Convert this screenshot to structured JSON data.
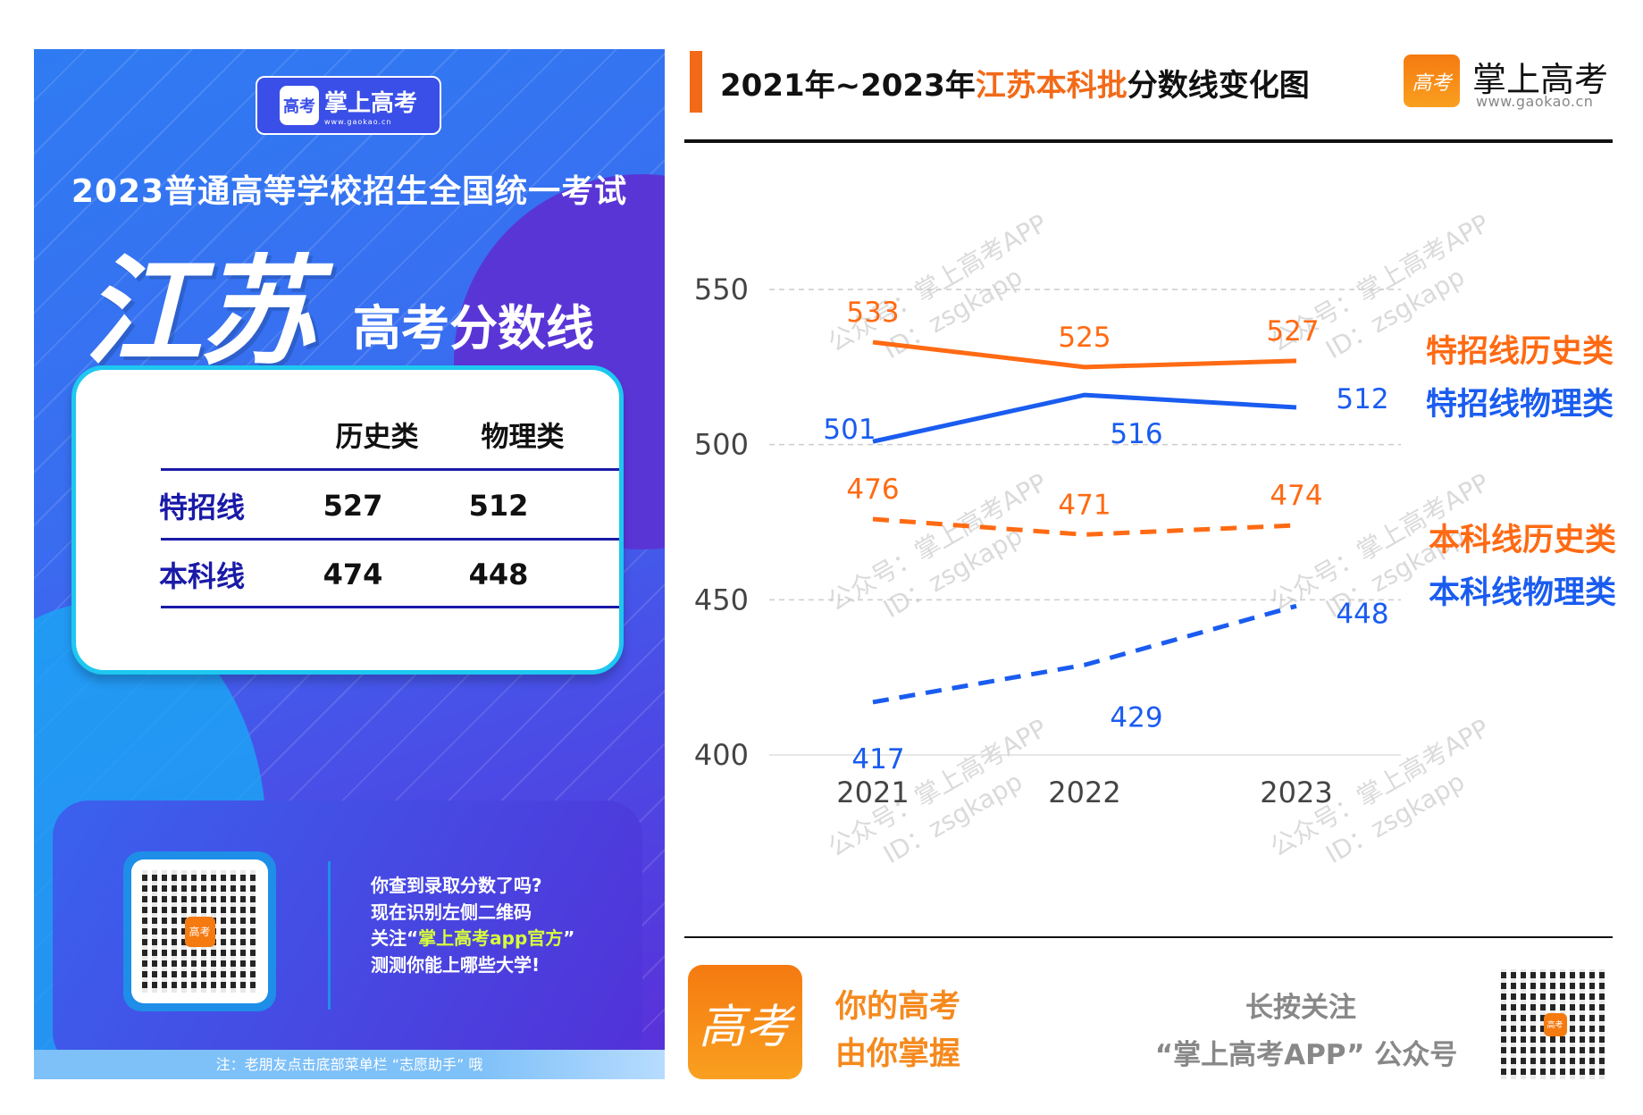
{
  "left_poster": {
    "logo": {
      "name": "掌上高考",
      "url": "www.gaokao.cn",
      "icon": "gaokao-logo-icon"
    },
    "exam_title": "2023普通高等学校招生全国统一考试",
    "province": "江苏",
    "subtitle": "高考分数线",
    "table": {
      "headers": [
        "",
        "历史类",
        "物理类"
      ],
      "rows": [
        {
          "label": "特招线",
          "history": "527",
          "physics": "512"
        },
        {
          "label": "本科线",
          "history": "474",
          "physics": "448"
        }
      ]
    },
    "promo": {
      "lines": [
        "你查到录取分数了吗?",
        "现在识别左侧二维码"
      ],
      "line3_prefix": "关注“",
      "line3_highlight": "掌上高考app官方",
      "line3_suffix": "”",
      "line4": "测测你能上哪些大学!"
    },
    "note": "注：老朋友点击底部菜单栏 “志愿助手” 哦"
  },
  "header": {
    "title_prefix": "2021年~2023年",
    "title_highlight": "江苏本科批",
    "title_suffix": "分数线变化图",
    "logo_name": "掌上高考",
    "logo_url": "www.gaokao.cn"
  },
  "watermark": {
    "line1": "公众号：掌上高考APP",
    "line2": "ID：zsgkapp"
  },
  "chart_data": {
    "type": "line",
    "categories": [
      "2021",
      "2022",
      "2023"
    ],
    "ylim": [
      400,
      550
    ],
    "yticks": [
      400,
      450,
      500,
      550
    ],
    "grid": "horizontal dashed",
    "legend_position": "right",
    "series": [
      {
        "name": "特招线历史类",
        "values": [
          533,
          525,
          527
        ],
        "color": "#ff6a13",
        "style": "solid"
      },
      {
        "name": "特招线物理类",
        "values": [
          501,
          516,
          512
        ],
        "color": "#1a5cf0",
        "style": "solid"
      },
      {
        "name": "本科线历史类",
        "values": [
          476,
          471,
          474
        ],
        "color": "#ff6a13",
        "style": "dashed"
      },
      {
        "name": "本科线物理类",
        "values": [
          417,
          429,
          448
        ],
        "color": "#1a5cf0",
        "style": "dashed"
      }
    ]
  },
  "footer": {
    "slogan1": "你的高考",
    "slogan2": "由你掌握",
    "follow1": "长按关注",
    "follow2": "“掌上高考APP” 公众号"
  }
}
